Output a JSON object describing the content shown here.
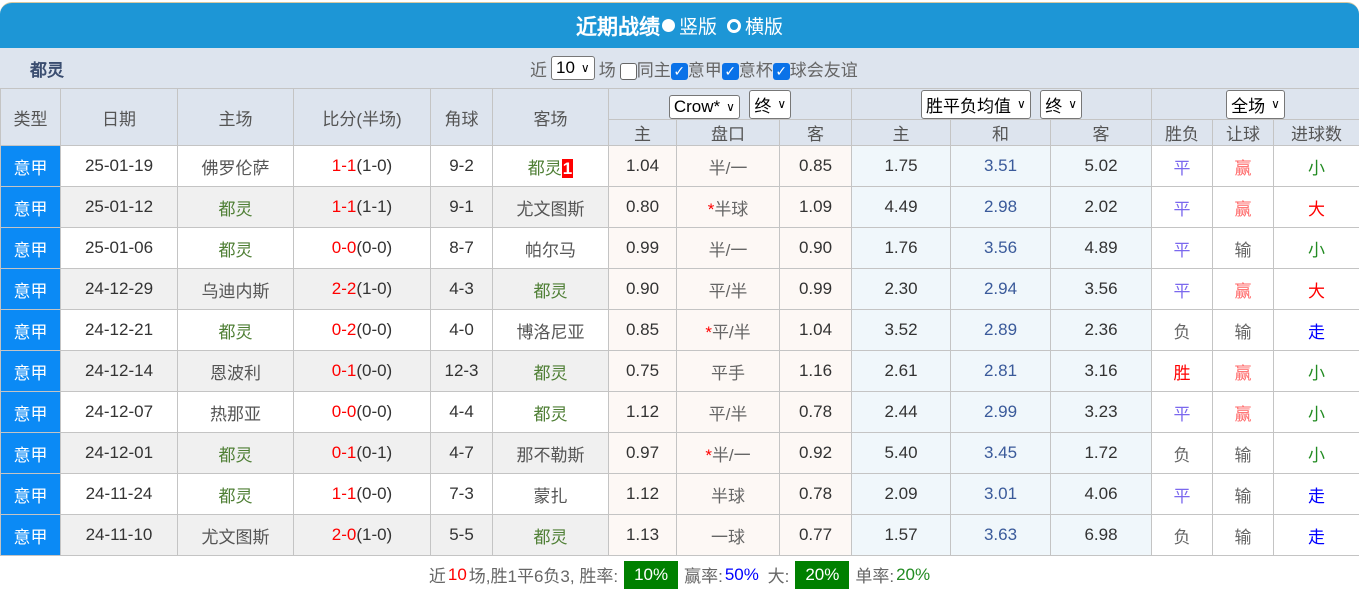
{
  "header": {
    "title": "近期战绩",
    "view_vertical": "竖版",
    "view_horizontal": "横版",
    "view_selected": "竖版"
  },
  "sub": {
    "team": "都灵",
    "near_label": "近",
    "count": "10",
    "games_label": "场",
    "filters": [
      {
        "label": "同主",
        "checked": false
      },
      {
        "label": "意甲",
        "checked": true
      },
      {
        "label": "意杯",
        "checked": true
      },
      {
        "label": "球会友谊",
        "checked": true
      }
    ]
  },
  "columns": {
    "type": "类型",
    "date": "日期",
    "home": "主场",
    "score": "比分(半场)",
    "corner": "角球",
    "away": "客场"
  },
  "selects": {
    "company": "Crow*",
    "handicap_stage": "终",
    "odds_type": "胜平负均值",
    "odds_stage": "终",
    "period": "全场"
  },
  "subcolumns": [
    "主",
    "盘口",
    "客",
    "主",
    "和",
    "客",
    "胜负",
    "让球",
    "进球数"
  ],
  "colors": {
    "win": "#ff0000",
    "draw": "#7b68ee",
    "loss": "#666666",
    "ah_win": "#ff6666",
    "ah_loss": "#666666",
    "big": "#ff0000",
    "small": "#228b22",
    "push": "#0000ff"
  },
  "rows": [
    {
      "type": "意甲",
      "date": "25-01-19",
      "home": "佛罗伦萨",
      "score": "1-1",
      "half": "(1-0)",
      "corner": "9-2",
      "away": "都灵",
      "away_badge": "1",
      "ah_home": "1.04",
      "ah_line": "半/一",
      "ah_star": "",
      "ah_away": "0.85",
      "o_home": "1.75",
      "o_draw": "3.51",
      "o_away": "5.02",
      "res": "平",
      "ah": "赢",
      "ou": "小"
    },
    {
      "type": "意甲",
      "date": "25-01-12",
      "home": "都灵",
      "score": "1-1",
      "half": "(1-1)",
      "corner": "9-1",
      "away": "尤文图斯",
      "away_badge": "",
      "ah_home": "0.80",
      "ah_line": "半球",
      "ah_star": "*",
      "ah_away": "1.09",
      "o_home": "4.49",
      "o_draw": "2.98",
      "o_away": "2.02",
      "res": "平",
      "ah": "赢",
      "ou": "大"
    },
    {
      "type": "意甲",
      "date": "25-01-06",
      "home": "都灵",
      "score": "0-0",
      "half": "(0-0)",
      "corner": "8-7",
      "away": "帕尔马",
      "away_badge": "",
      "ah_home": "0.99",
      "ah_line": "半/一",
      "ah_star": "",
      "ah_away": "0.90",
      "o_home": "1.76",
      "o_draw": "3.56",
      "o_away": "4.89",
      "res": "平",
      "ah": "输",
      "ou": "小"
    },
    {
      "type": "意甲",
      "date": "24-12-29",
      "home": "乌迪内斯",
      "score": "2-2",
      "half": "(1-0)",
      "corner": "4-3",
      "away": "都灵",
      "away_badge": "",
      "ah_home": "0.90",
      "ah_line": "平/半",
      "ah_star": "",
      "ah_away": "0.99",
      "o_home": "2.30",
      "o_draw": "2.94",
      "o_away": "3.56",
      "res": "平",
      "ah": "赢",
      "ou": "大"
    },
    {
      "type": "意甲",
      "date": "24-12-21",
      "home": "都灵",
      "score": "0-2",
      "half": "(0-0)",
      "corner": "4-0",
      "away": "博洛尼亚",
      "away_badge": "",
      "ah_home": "0.85",
      "ah_line": "平/半",
      "ah_star": "*",
      "ah_away": "1.04",
      "o_home": "3.52",
      "o_draw": "2.89",
      "o_away": "2.36",
      "res": "负",
      "ah": "输",
      "ou": "走"
    },
    {
      "type": "意甲",
      "date": "24-12-14",
      "home": "恩波利",
      "score": "0-1",
      "half": "(0-0)",
      "corner": "12-3",
      "away": "都灵",
      "away_badge": "",
      "ah_home": "0.75",
      "ah_line": "平手",
      "ah_star": "",
      "ah_away": "1.16",
      "o_home": "2.61",
      "o_draw": "2.81",
      "o_away": "3.16",
      "res": "胜",
      "ah": "赢",
      "ou": "小"
    },
    {
      "type": "意甲",
      "date": "24-12-07",
      "home": "热那亚",
      "score": "0-0",
      "half": "(0-0)",
      "corner": "4-4",
      "away": "都灵",
      "away_badge": "",
      "ah_home": "1.12",
      "ah_line": "平/半",
      "ah_star": "",
      "ah_away": "0.78",
      "o_home": "2.44",
      "o_draw": "2.99",
      "o_away": "3.23",
      "res": "平",
      "ah": "赢",
      "ou": "小"
    },
    {
      "type": "意甲",
      "date": "24-12-01",
      "home": "都灵",
      "score": "0-1",
      "half": "(0-1)",
      "corner": "4-7",
      "away": "那不勒斯",
      "away_badge": "",
      "ah_home": "0.97",
      "ah_line": "半/一",
      "ah_star": "*",
      "ah_away": "0.92",
      "o_home": "5.40",
      "o_draw": "3.45",
      "o_away": "1.72",
      "res": "负",
      "ah": "输",
      "ou": "小"
    },
    {
      "type": "意甲",
      "date": "24-11-24",
      "home": "都灵",
      "score": "1-1",
      "half": "(0-0)",
      "corner": "7-3",
      "away": "蒙扎",
      "away_badge": "",
      "ah_home": "1.12",
      "ah_line": "半球",
      "ah_star": "",
      "ah_away": "0.78",
      "o_home": "2.09",
      "o_draw": "3.01",
      "o_away": "4.06",
      "res": "平",
      "ah": "输",
      "ou": "走"
    },
    {
      "type": "意甲",
      "date": "24-11-10",
      "home": "尤文图斯",
      "score": "2-0",
      "half": "(1-0)",
      "corner": "5-5",
      "away": "都灵",
      "away_badge": "",
      "ah_home": "1.13",
      "ah_line": "一球",
      "ah_star": "",
      "ah_away": "0.77",
      "o_home": "1.57",
      "o_draw": "3.63",
      "o_away": "6.98",
      "res": "负",
      "ah": "输",
      "ou": "走"
    }
  ],
  "footer": {
    "prefix": "近",
    "count": "10",
    "summary": "场,胜1平6负3, 胜率:",
    "win_rate": "10%",
    "ah_label": "赢率:",
    "ah_rate": "50%",
    "big_label": "大:",
    "big_rate": "20%",
    "odd_label": "单率:",
    "odd_rate": "20%"
  }
}
